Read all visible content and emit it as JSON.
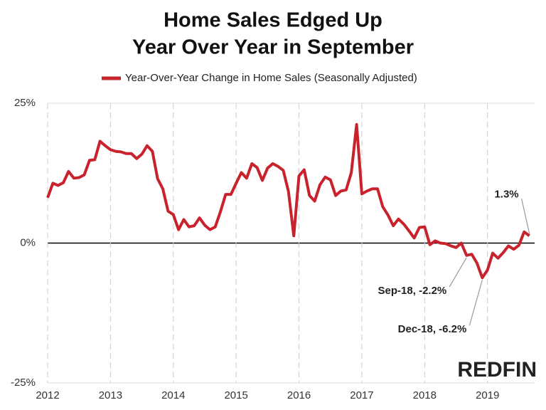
{
  "chart_data": {
    "type": "line",
    "title": [
      "Home Sales Edged Up",
      "Year Over Year in September"
    ],
    "x": [
      2012,
      2012.083,
      2012.167,
      2012.25,
      2012.333,
      2012.417,
      2012.5,
      2012.583,
      2012.667,
      2012.75,
      2012.833,
      2012.917,
      2013,
      2013.083,
      2013.167,
      2013.25,
      2013.333,
      2013.417,
      2013.5,
      2013.583,
      2013.667,
      2013.75,
      2013.833,
      2013.917,
      2014,
      2014.083,
      2014.167,
      2014.25,
      2014.333,
      2014.417,
      2014.5,
      2014.583,
      2014.667,
      2014.75,
      2014.833,
      2014.917,
      2015,
      2015.083,
      2015.167,
      2015.25,
      2015.333,
      2015.417,
      2015.5,
      2015.583,
      2015.667,
      2015.75,
      2015.833,
      2015.917,
      2016,
      2016.083,
      2016.167,
      2016.25,
      2016.333,
      2016.417,
      2016.5,
      2016.583,
      2016.667,
      2016.75,
      2016.833,
      2016.917,
      2017,
      2017.083,
      2017.167,
      2017.25,
      2017.333,
      2017.417,
      2017.5,
      2017.583,
      2017.667,
      2017.75,
      2017.833,
      2017.917,
      2018,
      2018.083,
      2018.167,
      2018.25,
      2018.333,
      2018.417,
      2018.5,
      2018.583,
      2018.667,
      2018.75,
      2018.833,
      2018.917,
      2019,
      2019.083,
      2019.167,
      2019.25,
      2019.333,
      2019.417,
      2019.5,
      2019.583,
      2019.667
    ],
    "series": [
      {
        "name": "Year-Over-Year Change in Home Sales (Seasonally Adjusted)",
        "color": "#c8232c",
        "values": [
          8.1,
          10.7,
          10.3,
          10.8,
          12.8,
          11.6,
          11.7,
          12.2,
          14.8,
          14.9,
          18.2,
          17.4,
          16.7,
          16.4,
          16.3,
          16.0,
          16.0,
          15.1,
          15.9,
          17.4,
          16.4,
          11.5,
          9.7,
          5.7,
          5.1,
          2.4,
          4.2,
          2.9,
          3.1,
          4.5,
          3.2,
          2.4,
          2.9,
          5.6,
          8.7,
          8.7,
          10.7,
          12.6,
          11.6,
          14.2,
          13.5,
          11.2,
          13.4,
          14.2,
          13.7,
          13.0,
          9.2,
          1.3,
          12.0,
          13.1,
          8.5,
          7.5,
          10.4,
          11.8,
          11.3,
          8.5,
          9.3,
          9.5,
          12.6,
          21.2,
          8.8,
          9.3,
          9.7,
          9.7,
          6.5,
          5.0,
          3.1,
          4.3,
          3.4,
          2.2,
          0.9,
          2.8,
          2.9,
          -0.3,
          0.4,
          0.0,
          -0.1,
          -0.5,
          -0.8,
          0.0,
          -2.2,
          -2.0,
          -3.6,
          -6.2,
          -4.8,
          -1.8,
          -2.7,
          -1.7,
          -0.5,
          -1.1,
          -0.4,
          2.0,
          1.3
        ]
      }
    ],
    "xlim": [
      2012,
      2019.75
    ],
    "xticks": [
      2012,
      2013,
      2014,
      2015,
      2016,
      2017,
      2018,
      2019
    ],
    "ylim": [
      -25,
      25
    ],
    "yticks": [
      {
        "value": -25,
        "label": "-25%"
      },
      {
        "value": 0,
        "label": "0%"
      },
      {
        "value": 25,
        "label": "25%"
      }
    ],
    "grid": true,
    "annotations": [
      {
        "text": "1.3%",
        "x": 2019.667,
        "y": 1.3
      },
      {
        "text": "Sep-18, -2.2%",
        "x": 2018.667,
        "y": -2.2
      },
      {
        "text": "Dec-18, -6.2%",
        "x": 2018.917,
        "y": -6.2
      }
    ],
    "logo": "REDFIN"
  }
}
